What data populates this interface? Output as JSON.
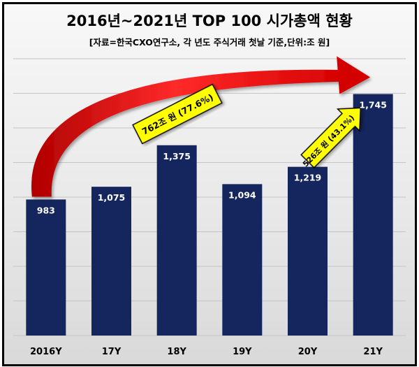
{
  "title": "2016년~2021년 TOP 100 시가총액 현황",
  "subtitle": "[자료=한국CXO연구소, 각 년도 주식거래 첫날 기준,단위:조 원]",
  "colors": {
    "bar": "#15265e",
    "arrow": "#e01010",
    "callout": "#ffff00",
    "gridline": "#c4c4c4"
  },
  "chart_data": {
    "type": "bar",
    "title": "2016년~2021년 TOP 100 시가총액 현황",
    "subtitle": "[자료=한국CXO연구소, 각 년도 주식거래 첫날 기준,단위:조 원]",
    "categories": [
      "2016Y",
      "17Y",
      "18Y",
      "19Y",
      "20Y",
      "21Y"
    ],
    "values": [
      983,
      1075,
      1375,
      1094,
      1219,
      1745
    ],
    "value_labels": [
      "983",
      "1,075",
      "1,375",
      "1,094",
      "1,219",
      "1,745"
    ],
    "ylim": [
      0,
      2000
    ],
    "grid": true,
    "y_axis_labels_shown": false,
    "annotations": [
      {
        "text": "762조 원 (77.6%)",
        "from": "2016Y",
        "to": "21Y",
        "arrow_color": "red"
      },
      {
        "text": "526조 원 (43.1%)",
        "from": "20Y",
        "to": "21Y",
        "arrow_color": "yellow"
      }
    ]
  }
}
